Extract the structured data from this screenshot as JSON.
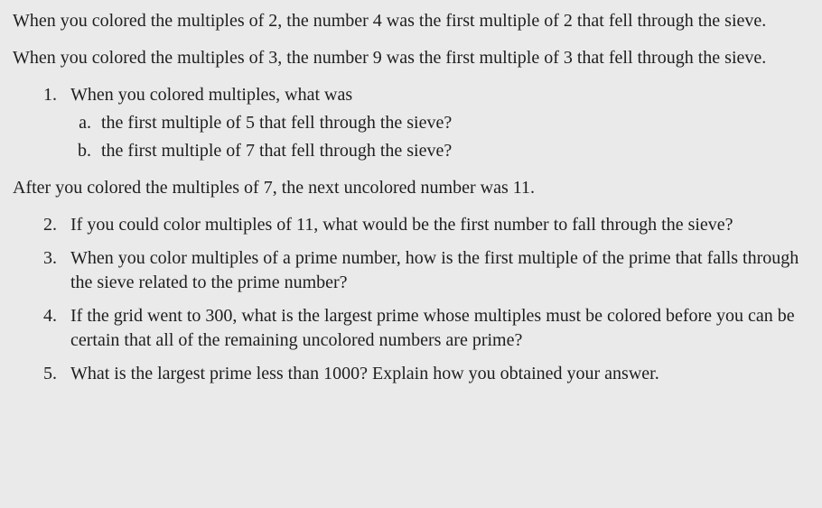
{
  "intro": {
    "p1": "When you colored the multiples of 2, the number 4 was the first multiple of 2 that fell through the sieve.",
    "p2": "When you colored the multiples of 3, the number 9 was the first multiple of 3 that fell through the sieve."
  },
  "q1": {
    "stem": "When you colored multiples, what was",
    "a": "the first multiple of 5 that fell through the sieve?",
    "b": "the first multiple of 7 that fell through the sieve?"
  },
  "mid": {
    "p": "After you colored the multiples of 7, the next uncolored number was 11."
  },
  "q2": "If you could color multiples of 11, what would be the first number to fall through the sieve?",
  "q3": "When you color multiples of a prime number, how is the first multiple of the prime that falls through the sieve related to the prime number?",
  "q4": "If the grid went to 300, what is the largest prime whose multiples must be colored before you can be certain that all of the remaining uncolored numbers are prime?",
  "q5": "What is the largest prime less than 1000? Explain how you obtained your answer."
}
